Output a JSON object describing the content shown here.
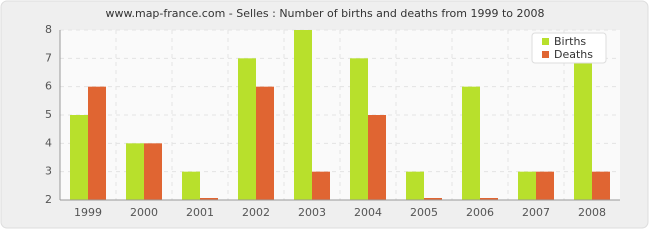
{
  "chart_data": {
    "type": "bar",
    "title": "www.map-france.com - Selles : Number of births and deaths from 1999 to 2008",
    "categories": [
      "1999",
      "2000",
      "2001",
      "2002",
      "2003",
      "2004",
      "2005",
      "2006",
      "2007",
      "2008"
    ],
    "series": [
      {
        "name": "Births",
        "color": "#b8e02c",
        "values": [
          5,
          4,
          3,
          7,
          8,
          7,
          3,
          6,
          3,
          7
        ]
      },
      {
        "name": "Deaths",
        "color": "#e06532",
        "values": [
          6,
          4,
          2,
          6,
          3,
          5,
          2,
          2,
          3,
          3
        ]
      }
    ],
    "ylim": [
      2,
      8
    ],
    "yticks": [
      2,
      3,
      4,
      5,
      6,
      7,
      8
    ],
    "grid": true,
    "legend": "top-right"
  }
}
